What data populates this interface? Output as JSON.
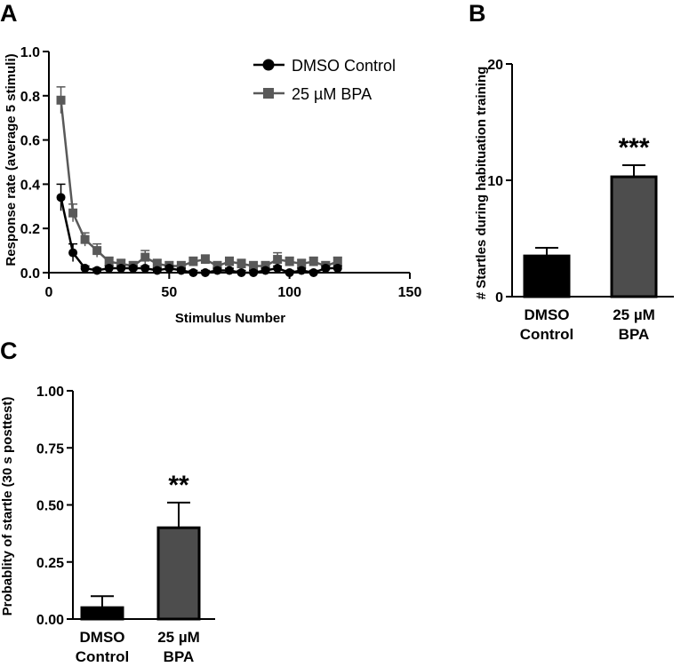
{
  "chart_data": [
    {
      "panel": "A",
      "type": "line",
      "xlabel": "Stimulus Number",
      "ylabel": "Response rate  (average 5 stimuli)",
      "xlim": [
        0,
        150
      ],
      "ylim": [
        0,
        1.0
      ],
      "xticks": [
        "0",
        "50",
        "100",
        "150"
      ],
      "yticks": [
        "0.0",
        "0.2",
        "0.4",
        "0.6",
        "0.8",
        "1.0"
      ],
      "legend": "top-right",
      "series": [
        {
          "name": "DMSO Control",
          "marker": "circle",
          "color": "#000000",
          "x": [
            5,
            10,
            15,
            20,
            25,
            30,
            35,
            40,
            45,
            50,
            55,
            60,
            65,
            70,
            75,
            80,
            85,
            90,
            95,
            100,
            105,
            110,
            115,
            120
          ],
          "y": [
            0.34,
            0.09,
            0.02,
            0.01,
            0.02,
            0.02,
            0.02,
            0.02,
            0.01,
            0.02,
            0.01,
            0.0,
            0.0,
            0.01,
            0.01,
            0.0,
            0.0,
            0.01,
            0.02,
            0.0,
            0.01,
            0.0,
            0.02,
            0.02
          ],
          "err": [
            0.06,
            0.04,
            0.01,
            0.01,
            0.01,
            0.01,
            0.01,
            0.01,
            0.01,
            0.01,
            0.01,
            0.01,
            0.01,
            0.01,
            0.01,
            0.01,
            0.01,
            0.01,
            0.01,
            0.01,
            0.01,
            0.01,
            0.01,
            0.01
          ]
        },
        {
          "name": "25 µM BPA",
          "marker": "square",
          "color": "#595959",
          "x": [
            5,
            10,
            15,
            20,
            25,
            30,
            35,
            40,
            45,
            50,
            55,
            60,
            65,
            70,
            75,
            80,
            85,
            90,
            95,
            100,
            105,
            110,
            115,
            120
          ],
          "y": [
            0.78,
            0.27,
            0.15,
            0.1,
            0.05,
            0.04,
            0.03,
            0.07,
            0.04,
            0.03,
            0.03,
            0.05,
            0.06,
            0.03,
            0.05,
            0.04,
            0.03,
            0.03,
            0.06,
            0.05,
            0.04,
            0.05,
            0.03,
            0.05
          ],
          "err": [
            0.06,
            0.04,
            0.03,
            0.03,
            0.02,
            0.02,
            0.02,
            0.03,
            0.02,
            0.02,
            0.02,
            0.02,
            0.02,
            0.02,
            0.02,
            0.02,
            0.02,
            0.02,
            0.03,
            0.02,
            0.02,
            0.02,
            0.02,
            0.02
          ]
        }
      ]
    },
    {
      "panel": "B",
      "type": "bar",
      "ylabel": "# Startles during habituation  training",
      "ylim": [
        0,
        20
      ],
      "yticks": [
        "0",
        "10",
        "20"
      ],
      "categories": [
        [
          "DMSO",
          "Control"
        ],
        [
          "25 µM",
          "BPA"
        ]
      ],
      "values": [
        3.5,
        10.3
      ],
      "err": [
        0.7,
        1.0
      ],
      "colors": [
        "#000000",
        "#4d4d4d"
      ],
      "annotations": [
        "",
        "***"
      ]
    },
    {
      "panel": "C",
      "type": "bar",
      "ylabel": "Probablity of startle (30 s posttest)",
      "ylim": [
        0,
        1.0
      ],
      "yticks": [
        "0.00",
        "0.25",
        "0.50",
        "0.75",
        "1.00"
      ],
      "categories": [
        [
          "DMSO",
          "Control"
        ],
        [
          "25 µM",
          "BPA"
        ]
      ],
      "values": [
        0.05,
        0.4
      ],
      "err": [
        0.05,
        0.11
      ],
      "colors": [
        "#000000",
        "#4d4d4d"
      ],
      "annotations": [
        "",
        "**"
      ]
    }
  ]
}
